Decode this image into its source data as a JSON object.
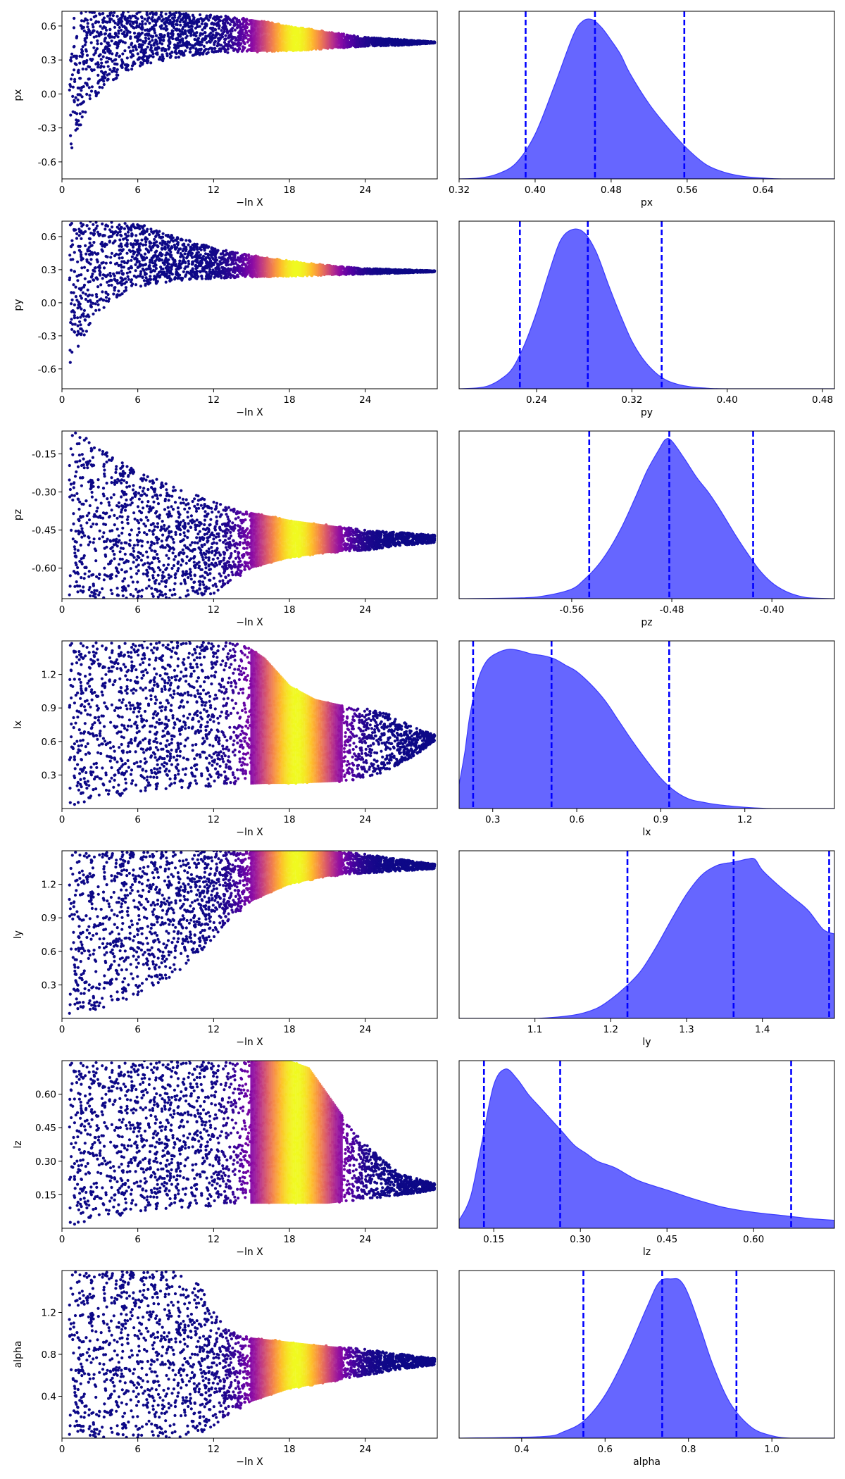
{
  "figure": {
    "panel_count": 14,
    "trace_xlabel": "−ln X",
    "colormap": "plasma",
    "posterior_fill_color": "#6666ff",
    "posterior_edge_color": "#3a3aff",
    "quantile_line_color": "#0000ff"
  },
  "chart_data": [
    {
      "type": "scatter",
      "panel": "trace",
      "row": 0,
      "param": "px",
      "xlabel": "−ln X",
      "ylabel": "px",
      "xlim": [
        0,
        29.7
      ],
      "ylim": [
        -0.75,
        0.73
      ],
      "xticks": [
        "0",
        "6",
        "12",
        "18",
        "24"
      ],
      "yticks": [
        "-0.6",
        "-0.3",
        "0.0",
        "0.3",
        "0.6"
      ],
      "envelope": {
        "x": [
          0,
          0.5,
          1,
          2,
          3,
          4,
          6,
          9,
          12,
          15,
          18,
          21,
          24,
          27,
          29.5
        ],
        "lower": [
          -0.75,
          -0.6,
          -0.42,
          -0.12,
          0.02,
          0.12,
          0.24,
          0.32,
          0.36,
          0.37,
          0.38,
          0.4,
          0.42,
          0.43,
          0.45
        ],
        "upper": [
          0.73,
          0.73,
          0.73,
          0.73,
          0.73,
          0.73,
          0.73,
          0.72,
          0.7,
          0.66,
          0.6,
          0.55,
          0.5,
          0.48,
          0.46
        ]
      },
      "weight_peak": 18.5,
      "weight_width": 2.2
    },
    {
      "type": "area",
      "panel": "posterior",
      "row": 0,
      "param": "px",
      "xlabel": "px",
      "xlim": [
        0.32,
        0.715
      ],
      "xticks": [
        "0.32",
        "0.40",
        "0.48",
        "0.56",
        "0.64"
      ],
      "x": [
        0.32,
        0.34,
        0.36,
        0.38,
        0.4,
        0.42,
        0.44,
        0.45,
        0.46,
        0.47,
        0.48,
        0.49,
        0.5,
        0.52,
        0.54,
        0.56,
        0.58,
        0.6,
        0.62,
        0.64,
        0.66,
        0.715
      ],
      "density": [
        0.0,
        0.005,
        0.03,
        0.1,
        0.28,
        0.58,
        0.9,
        0.99,
        1.0,
        0.95,
        0.87,
        0.78,
        0.66,
        0.47,
        0.32,
        0.19,
        0.09,
        0.04,
        0.015,
        0.005,
        0.0,
        0.0
      ],
      "quantiles": [
        0.39,
        0.463,
        0.557
      ]
    },
    {
      "type": "scatter",
      "panel": "trace",
      "row": 1,
      "param": "py",
      "xlabel": "−ln X",
      "ylabel": "py",
      "xlim": [
        0,
        29.7
      ],
      "ylim": [
        -0.78,
        0.74
      ],
      "xticks": [
        "0",
        "6",
        "12",
        "18",
        "24"
      ],
      "yticks": [
        "-0.6",
        "-0.3",
        "0.0",
        "0.3",
        "0.6"
      ],
      "envelope": {
        "x": [
          0,
          0.5,
          1,
          2,
          3,
          4,
          6,
          9,
          12,
          15,
          18,
          21,
          24,
          27,
          29.5
        ],
        "lower": [
          -0.78,
          -0.62,
          -0.48,
          -0.25,
          -0.08,
          0.03,
          0.14,
          0.2,
          0.22,
          0.23,
          0.24,
          0.25,
          0.26,
          0.27,
          0.28
        ],
        "upper": [
          0.74,
          0.74,
          0.74,
          0.74,
          0.74,
          0.74,
          0.72,
          0.6,
          0.5,
          0.43,
          0.38,
          0.34,
          0.31,
          0.3,
          0.29
        ]
      },
      "weight_peak": 18.5,
      "weight_width": 2.2
    },
    {
      "type": "area",
      "panel": "posterior",
      "row": 1,
      "param": "py",
      "xlabel": "py",
      "xlim": [
        0.175,
        0.49
      ],
      "xticks": [
        "0.24",
        "0.32",
        "0.40",
        "0.48"
      ],
      "x": [
        0.175,
        0.19,
        0.2,
        0.21,
        0.22,
        0.23,
        0.24,
        0.25,
        0.26,
        0.27,
        0.28,
        0.29,
        0.3,
        0.31,
        0.32,
        0.33,
        0.34,
        0.35,
        0.36,
        0.37,
        0.38,
        0.4,
        0.49
      ],
      "density": [
        0.0,
        0.005,
        0.02,
        0.06,
        0.13,
        0.28,
        0.48,
        0.72,
        0.93,
        1.0,
        0.98,
        0.86,
        0.66,
        0.47,
        0.3,
        0.18,
        0.1,
        0.05,
        0.025,
        0.012,
        0.005,
        0.0,
        0.0
      ],
      "quantiles": [
        0.226,
        0.283,
        0.345
      ]
    },
    {
      "type": "scatter",
      "panel": "trace",
      "row": 2,
      "param": "pz",
      "xlabel": "−ln X",
      "ylabel": "pz",
      "xlim": [
        0,
        29.7
      ],
      "ylim": [
        -0.72,
        -0.06
      ],
      "xticks": [
        "0",
        "6",
        "12",
        "18",
        "24"
      ],
      "yticks": [
        "-0.15",
        "-0.30",
        "-0.45",
        "-0.60"
      ],
      "envelope": {
        "x": [
          0,
          1,
          2,
          3,
          5,
          7,
          9,
          12,
          15,
          18,
          21,
          24,
          27,
          29.5
        ],
        "lower": [
          -0.72,
          -0.72,
          -0.72,
          -0.72,
          -0.72,
          -0.72,
          -0.72,
          -0.7,
          -0.6,
          -0.56,
          -0.54,
          -0.53,
          -0.51,
          -0.5
        ],
        "upper": [
          -0.06,
          -0.06,
          -0.08,
          -0.12,
          -0.19,
          -0.24,
          -0.28,
          -0.34,
          -0.38,
          -0.41,
          -0.43,
          -0.45,
          -0.46,
          -0.47
        ]
      },
      "weight_peak": 18.5,
      "weight_width": 2.2
    },
    {
      "type": "area",
      "panel": "posterior",
      "row": 2,
      "param": "pz",
      "xlabel": "pz",
      "xlim": [
        -0.65,
        -0.35
      ],
      "xticks": [
        "-0.56",
        "-0.48",
        "-0.40"
      ],
      "x": [
        -0.65,
        -0.6,
        -0.58,
        -0.56,
        -0.55,
        -0.54,
        -0.53,
        -0.52,
        -0.51,
        -0.5,
        -0.49,
        -0.485,
        -0.48,
        -0.47,
        -0.46,
        -0.45,
        -0.44,
        -0.43,
        -0.42,
        -0.41,
        -0.4,
        -0.39,
        -0.38,
        -0.37,
        -0.35
      ],
      "density": [
        0.0,
        0.005,
        0.02,
        0.06,
        0.12,
        0.2,
        0.31,
        0.45,
        0.62,
        0.8,
        0.94,
        1.0,
        0.99,
        0.88,
        0.76,
        0.66,
        0.54,
        0.41,
        0.29,
        0.18,
        0.1,
        0.05,
        0.02,
        0.005,
        0.0
      ],
      "quantiles": [
        -0.546,
        -0.482,
        -0.415
      ]
    },
    {
      "type": "scatter",
      "panel": "trace",
      "row": 3,
      "param": "lx",
      "xlabel": "−ln X",
      "ylabel": "lx",
      "xlim": [
        0,
        29.7
      ],
      "ylim": [
        0.0,
        1.5
      ],
      "xticks": [
        "0",
        "6",
        "12",
        "18",
        "24"
      ],
      "yticks": [
        "0.3",
        "0.6",
        "0.9",
        "1.2"
      ],
      "envelope": {
        "x": [
          0,
          1,
          3,
          6,
          9,
          12,
          14,
          16,
          18,
          20,
          22,
          24,
          26,
          28,
          29.5
        ],
        "lower": [
          0.0,
          0.02,
          0.08,
          0.14,
          0.18,
          0.2,
          0.21,
          0.22,
          0.22,
          0.23,
          0.24,
          0.27,
          0.35,
          0.48,
          0.6
        ],
        "upper": [
          1.5,
          1.5,
          1.5,
          1.5,
          1.5,
          1.5,
          1.5,
          1.35,
          1.1,
          0.98,
          0.93,
          0.9,
          0.84,
          0.72,
          0.66
        ]
      },
      "weight_peak": 18.5,
      "weight_width": 2.2
    },
    {
      "type": "area",
      "panel": "posterior",
      "row": 3,
      "param": "lx",
      "xlabel": "lx",
      "xlim": [
        0.18,
        1.52
      ],
      "xticks": [
        "0.3",
        "0.6",
        "0.9",
        "1.2"
      ],
      "x": [
        0.18,
        0.2,
        0.22,
        0.25,
        0.28,
        0.32,
        0.36,
        0.4,
        0.44,
        0.48,
        0.52,
        0.56,
        0.6,
        0.65,
        0.7,
        0.75,
        0.8,
        0.85,
        0.9,
        0.95,
        1.0,
        1.05,
        1.1,
        1.2,
        1.3,
        1.52
      ],
      "density": [
        0.15,
        0.35,
        0.6,
        0.82,
        0.93,
        0.98,
        1.0,
        0.99,
        0.97,
        0.96,
        0.94,
        0.9,
        0.86,
        0.78,
        0.68,
        0.55,
        0.42,
        0.3,
        0.19,
        0.11,
        0.06,
        0.04,
        0.025,
        0.008,
        0.0,
        0.0
      ],
      "quantiles": [
        0.23,
        0.51,
        0.93
      ]
    },
    {
      "type": "scatter",
      "panel": "trace",
      "row": 4,
      "param": "ly",
      "xlabel": "−ln X",
      "ylabel": "ly",
      "xlim": [
        0,
        29.7
      ],
      "ylim": [
        0.0,
        1.5
      ],
      "xticks": [
        "0",
        "6",
        "12",
        "18",
        "24"
      ],
      "yticks": [
        "0.3",
        "0.6",
        "0.9",
        "1.2"
      ],
      "envelope": {
        "x": [
          0,
          1,
          3,
          5,
          7,
          9,
          11,
          13,
          15,
          18,
          21,
          24,
          27,
          29.5
        ],
        "lower": [
          0.0,
          0.02,
          0.08,
          0.16,
          0.26,
          0.4,
          0.6,
          0.85,
          1.05,
          1.2,
          1.27,
          1.3,
          1.32,
          1.34
        ],
        "upper": [
          1.5,
          1.5,
          1.5,
          1.5,
          1.5,
          1.5,
          1.5,
          1.5,
          1.5,
          1.5,
          1.5,
          1.47,
          1.42,
          1.38
        ]
      },
      "weight_peak": 18.5,
      "weight_width": 2.2
    },
    {
      "type": "area",
      "panel": "posterior",
      "row": 4,
      "param": "ly",
      "xlabel": "ly",
      "xlim": [
        1.0,
        1.495
      ],
      "xticks": [
        "1.1",
        "1.2",
        "1.3",
        "1.4"
      ],
      "x": [
        1.0,
        1.1,
        1.15,
        1.18,
        1.2,
        1.22,
        1.24,
        1.26,
        1.28,
        1.3,
        1.32,
        1.34,
        1.36,
        1.37,
        1.38,
        1.39,
        1.4,
        1.42,
        1.44,
        1.46,
        1.48,
        1.495
      ],
      "density": [
        0.0,
        0.0,
        0.02,
        0.06,
        0.12,
        0.2,
        0.3,
        0.45,
        0.62,
        0.78,
        0.9,
        0.96,
        0.98,
        0.99,
        1.0,
        1.0,
        0.93,
        0.84,
        0.76,
        0.68,
        0.56,
        0.53
      ],
      "quantiles": [
        1.222,
        1.362,
        1.488
      ]
    },
    {
      "type": "scatter",
      "panel": "trace",
      "row": 5,
      "param": "lz",
      "xlabel": "−ln X",
      "ylabel": "lz",
      "xlim": [
        0,
        29.7
      ],
      "ylim": [
        0.0,
        0.75
      ],
      "xticks": [
        "0",
        "6",
        "12",
        "18",
        "24"
      ],
      "yticks": [
        "0.15",
        "0.30",
        "0.45",
        "0.60"
      ],
      "envelope": {
        "x": [
          0,
          1,
          3,
          6,
          9,
          12,
          15,
          18,
          19.5,
          21,
          22.5,
          24,
          25.5,
          27,
          29.5
        ],
        "lower": [
          0.0,
          0.01,
          0.04,
          0.07,
          0.09,
          0.1,
          0.11,
          0.11,
          0.11,
          0.11,
          0.12,
          0.13,
          0.14,
          0.15,
          0.17
        ],
        "upper": [
          0.75,
          0.75,
          0.75,
          0.75,
          0.75,
          0.75,
          0.75,
          0.75,
          0.72,
          0.6,
          0.48,
          0.38,
          0.3,
          0.24,
          0.2
        ]
      },
      "weight_peak": 18.5,
      "weight_width": 2.2
    },
    {
      "type": "area",
      "panel": "posterior",
      "row": 5,
      "param": "lz",
      "xlabel": "lz",
      "xlim": [
        0.09,
        0.74
      ],
      "xticks": [
        "0.15",
        "0.30",
        "0.45",
        "0.60"
      ],
      "x": [
        0.09,
        0.11,
        0.13,
        0.15,
        0.17,
        0.19,
        0.21,
        0.23,
        0.25,
        0.27,
        0.29,
        0.31,
        0.33,
        0.36,
        0.4,
        0.45,
        0.5,
        0.55,
        0.6,
        0.65,
        0.7,
        0.74
      ],
      "density": [
        0.05,
        0.2,
        0.55,
        0.9,
        1.0,
        0.94,
        0.84,
        0.76,
        0.68,
        0.6,
        0.52,
        0.47,
        0.42,
        0.38,
        0.3,
        0.24,
        0.18,
        0.13,
        0.1,
        0.08,
        0.06,
        0.05
      ],
      "quantiles": [
        0.133,
        0.265,
        0.665
      ]
    },
    {
      "type": "scatter",
      "panel": "trace",
      "row": 6,
      "param": "alpha",
      "xlabel": "−ln X",
      "ylabel": "alpha",
      "xlim": [
        0,
        29.7
      ],
      "ylim": [
        0.0,
        1.6
      ],
      "xticks": [
        "0",
        "6",
        "12",
        "18",
        "24"
      ],
      "yticks": [
        "0.4",
        "0.8",
        "1.2"
      ],
      "envelope": {
        "x": [
          0,
          3,
          6,
          9,
          11,
          12,
          13,
          15,
          18,
          21,
          24,
          27,
          29.5
        ],
        "lower": [
          0.0,
          0.0,
          0.0,
          0.0,
          0.05,
          0.12,
          0.2,
          0.35,
          0.47,
          0.53,
          0.6,
          0.66,
          0.7
        ],
        "upper": [
          1.6,
          1.6,
          1.6,
          1.6,
          1.45,
          1.2,
          1.05,
          0.96,
          0.92,
          0.88,
          0.85,
          0.8,
          0.76
        ]
      },
      "weight_peak": 18.5,
      "weight_width": 2.2
    },
    {
      "type": "area",
      "panel": "posterior",
      "row": 6,
      "param": "alpha",
      "xlabel": "alpha",
      "xlim": [
        0.25,
        1.15
      ],
      "xticks": [
        "0.4",
        "0.6",
        "0.8",
        "1.0"
      ],
      "x": [
        0.25,
        0.45,
        0.5,
        0.55,
        0.6,
        0.65,
        0.7,
        0.73,
        0.76,
        0.78,
        0.8,
        0.83,
        0.86,
        0.9,
        0.95,
        1.0,
        1.05,
        1.15
      ],
      "density": [
        0.0,
        0.01,
        0.04,
        0.11,
        0.27,
        0.52,
        0.82,
        0.98,
        1.0,
        0.99,
        0.9,
        0.68,
        0.45,
        0.22,
        0.07,
        0.015,
        0.0,
        0.0
      ],
      "quantiles": [
        0.548,
        0.737,
        0.915
      ]
    }
  ]
}
